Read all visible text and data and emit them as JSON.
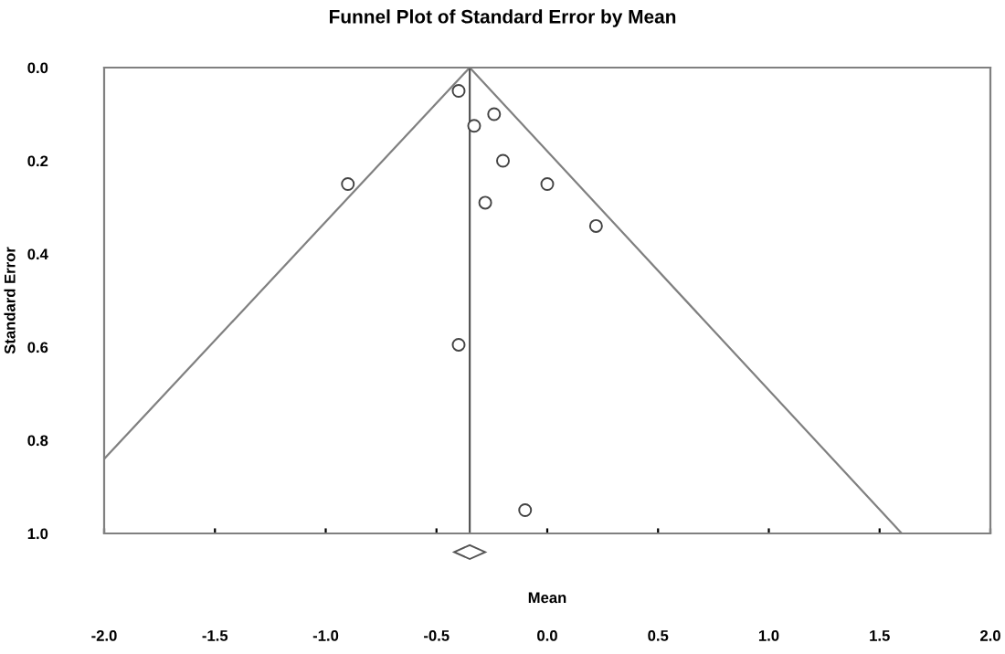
{
  "chart_data": {
    "type": "scatter",
    "title": "Funnel Plot of Standard Error by Mean",
    "xlabel": "Mean",
    "ylabel": "Standard Error",
    "series": [
      {
        "color": "#444444",
        "marker": "circle",
        "x": [
          -0.4,
          -0.33,
          -0.24,
          -0.2,
          0.0,
          -0.28,
          0.22,
          -0.9,
          -0.4,
          -0.1
        ],
        "values": [
          0.05,
          0.125,
          0.1,
          0.2,
          0.25,
          0.29,
          0.34,
          0.25,
          0.595,
          0.95
        ]
      },
      {
        "type": "line",
        "color": "#808080",
        "marker": "none",
        "x": [
          -0.35,
          -2.0
        ],
        "values": [
          0.0,
          0.84
        ]
      },
      {
        "type": "line",
        "color": "#808080",
        "marker": "none",
        "x": [
          -0.35,
          1.6
        ],
        "values": [
          0.0,
          1.0
        ]
      }
    ],
    "ref_lines": [
      {
        "axis": "x",
        "value": -0.35,
        "color": "#555555"
      }
    ],
    "xlim": [
      -2.0,
      2.0
    ],
    "ylim": [
      1.0,
      0.0
    ],
    "xticks": [
      {
        "value": -2.0,
        "label": "-2.0"
      },
      {
        "value": -1.5,
        "label": "-1.5"
      },
      {
        "value": -1.0,
        "label": "-1.0"
      },
      {
        "value": -0.5,
        "label": "-0.5"
      },
      {
        "value": 0.0,
        "label": "0.0"
      },
      {
        "value": 0.5,
        "label": "0.5"
      },
      {
        "value": 1.0,
        "label": "1.0"
      },
      {
        "value": 1.5,
        "label": "1.5"
      },
      {
        "value": 2.0,
        "label": "2.0"
      }
    ],
    "yticks": [
      {
        "value": 0.0,
        "label": "0.0"
      },
      {
        "value": 0.2,
        "label": "0.2"
      },
      {
        "value": 0.4,
        "label": "0.4"
      },
      {
        "value": 0.6,
        "label": "0.6"
      },
      {
        "value": 0.8,
        "label": "0.8"
      },
      {
        "value": 1.0,
        "label": "1.0"
      }
    ],
    "grid": false,
    "legend": false
  }
}
